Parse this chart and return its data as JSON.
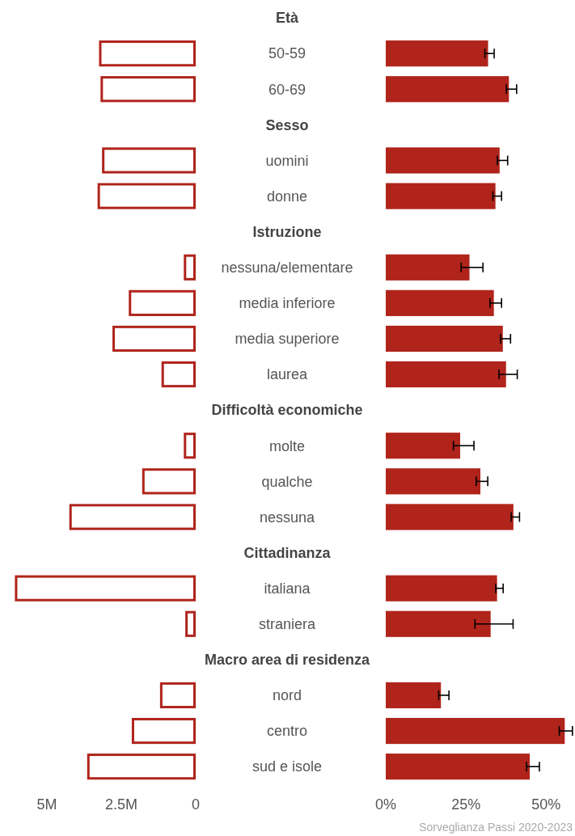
{
  "chart_data": [
    {
      "type": "bar",
      "orientation": "horizontal",
      "color": "#b0241b",
      "categories": [
        "Età",
        "50-59",
        "60-69",
        "Sesso",
        "uomini",
        "donne",
        "Istruzione",
        "nessuna/elementare",
        "media inferiore",
        "media superiore",
        "laurea",
        "Difficoltà economiche",
        "molte",
        "qualche",
        "nessuna",
        "Cittadinanza",
        "italiana",
        "straniera",
        "Macro area di residenza",
        "nord",
        "centro",
        "sud e isole"
      ],
      "values": [
        null,
        3250000,
        3200000,
        null,
        3150000,
        3300000,
        null,
        400000,
        2250000,
        2800000,
        1150000,
        null,
        400000,
        1800000,
        4250000,
        null,
        6080000,
        350000,
        null,
        1200000,
        2150000,
        3650000
      ],
      "xlim": [
        6200000,
        0
      ],
      "xticks": [
        {
          "value": 5000000,
          "label": "5M"
        },
        {
          "value": 2500000,
          "label": "2.5M"
        },
        0
      ]
    },
    {
      "type": "bar",
      "orientation": "horizontal",
      "color": "#b0241b",
      "categories": [
        null,
        null,
        null,
        null,
        null,
        null,
        null,
        null,
        null,
        null,
        null,
        null,
        null,
        null,
        null,
        null,
        null,
        null,
        null,
        null,
        null,
        null
      ],
      "values": [
        null,
        31.9,
        38.4,
        null,
        35.5,
        34.2,
        null,
        26.1,
        33.7,
        36.5,
        37.5,
        null,
        23.2,
        29.5,
        39.8,
        null,
        34.7,
        32.7,
        null,
        17.2,
        55.8,
        44.9
      ],
      "errors": [
        null,
        [
          30.9,
          33.8
        ],
        [
          37.6,
          40.8
        ],
        null,
        [
          34.8,
          38.0
        ],
        [
          33.4,
          36.1
        ],
        null,
        [
          23.5,
          30.3
        ],
        [
          32.5,
          36.1
        ],
        [
          35.8,
          38.9
        ],
        [
          35.3,
          41.0
        ],
        null,
        [
          21.1,
          27.5
        ],
        [
          28.2,
          31.8
        ],
        [
          39.1,
          41.7
        ],
        null,
        [
          34.3,
          36.6
        ],
        [
          27.8,
          39.7
        ],
        null,
        [
          16.5,
          19.7
        ],
        [
          54.1,
          58.2
        ],
        [
          43.9,
          47.9
        ]
      ],
      "xlim": [
        0,
        59
      ],
      "xticks": [
        {
          "value": 0,
          "label": "0%"
        },
        {
          "value": 25,
          "label": "25%"
        },
        {
          "value": 50,
          "label": "50%"
        }
      ],
      "annotations": [
        "Sorveglianza Passi 2020-2023"
      ]
    }
  ]
}
